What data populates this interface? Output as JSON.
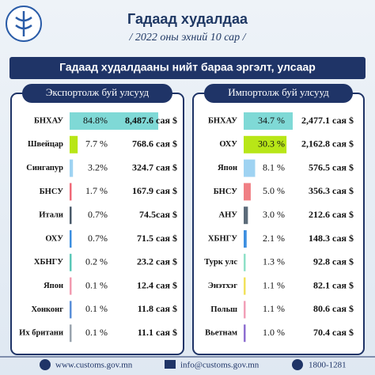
{
  "header": {
    "title": "Гадаад худалдаа",
    "subtitle": "/ 2022 оны эхний 10 сар /",
    "banner": "Гадаад худалдааны нийт бараа эргэлт, улсаар"
  },
  "chart_data": [
    {
      "type": "bar",
      "title": "Экспортолж буй улсууд",
      "categories": [
        "БНХАУ",
        "Швейцар",
        "Сингапур",
        "БНСУ",
        "Итали",
        "ОХУ",
        "ХБНГУ",
        "Япон",
        "Хонконг",
        "Их британи"
      ],
      "values": [
        84.8,
        7.7,
        3.2,
        1.7,
        0.7,
        0.7,
        0.2,
        0.1,
        0.1,
        0.1
      ],
      "value_labels": [
        "84.8%",
        "7.7 %",
        "3.2%",
        "1.7 %",
        "0.7%",
        "0.7%",
        "0.2 %",
        "0.1 %",
        "0.1 %",
        "0.1 %"
      ],
      "amounts": [
        "8,487.6 сая $",
        "768.6 сая $",
        "324.7 сая $",
        "167.9 сая $",
        "74.5сая $",
        "71.5 сая $",
        "23.2 сая $",
        "12.4 сая $",
        "11.8 сая $",
        "11.1 сая $"
      ],
      "colors": [
        "#7fd9d6",
        "#b8e617",
        "#9fd3f2",
        "#f06a78",
        "#4a5a6a",
        "#3d8fe0",
        "#5cc8b8",
        "#f29bb0",
        "#5b8fd8",
        "#9aa4ae"
      ]
    },
    {
      "type": "bar",
      "title": "Импортолж буй улсууд",
      "categories": [
        "БНХАУ",
        "ОХУ",
        "Япон",
        "БНСУ",
        "АНУ",
        "ХБНГУ",
        "Турк улс",
        "Энэтхэг",
        "Польш",
        "Вьетнам"
      ],
      "values": [
        34.7,
        30.3,
        8.1,
        5.0,
        3.0,
        2.1,
        1.3,
        1.1,
        1.1,
        1.0
      ],
      "value_labels": [
        "34.7 %",
        "30.3 %",
        "8.1 %",
        "5.0 %",
        "3.0 %",
        "2.1 %",
        "1.3 %",
        "1.1 %",
        "1.1 %",
        "1.0 %"
      ],
      "amounts": [
        "2,477.1 сая $",
        "2,162.8 сая $",
        "576.5 сая $",
        "356.3 сая $",
        "212.6 сая $",
        "148.3 сая $",
        "92.8 сая $",
        "82.1 сая $",
        "80.6 сая $",
        "70.4 сая $"
      ],
      "colors": [
        "#7fd9d6",
        "#b8e617",
        "#9fd3f2",
        "#f07f84",
        "#5c6b7a",
        "#3d8fe0",
        "#8fe0c8",
        "#f2e25c",
        "#f2a0b8",
        "#8e6fd0"
      ]
    }
  ],
  "footer": {
    "web": "www.customs.gov.mn",
    "email": "info@customs.gov.mn",
    "phone": "1800-1281"
  }
}
